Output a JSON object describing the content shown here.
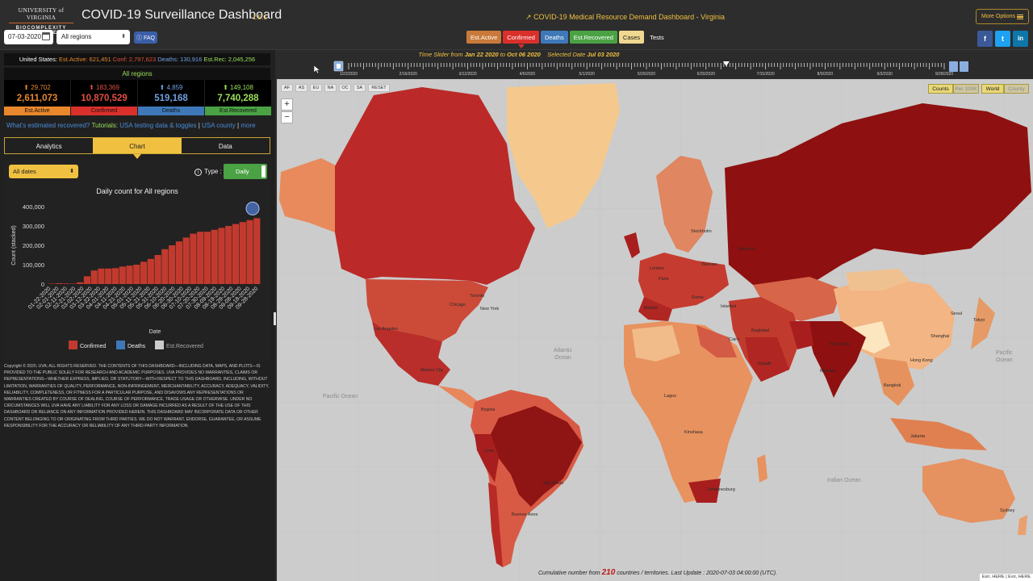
{
  "header": {
    "logo_line1": "UNIVERSITY of VIRGINIA",
    "logo_line2": "BIOCOMPLEXITY INSTITUTE",
    "title": "COVID-19 Surveillance Dashboard",
    "version": "1.5.1",
    "date_value": "07-03-2020",
    "region_value": "All regions",
    "faq": "FAQ",
    "med_link": "COVID-19 Medical Resource Demand Dashboard - Virginia",
    "stat_tabs": [
      "Est.Active",
      "Confirmed",
      "Deaths",
      "Est.Recovered",
      "Cases",
      "Tests"
    ],
    "more_options": "More Options",
    "social": [
      "f",
      "t",
      "in"
    ]
  },
  "summary": {
    "prefix": "United States:",
    "active": "Est.Active: 621,451",
    "conf": "Conf: 2,797,623",
    "deaths": "Deaths: 130,916",
    "rec": "Est.Rec: 2,045,256",
    "scope": "All regions"
  },
  "cards": [
    {
      "delta": "29,702",
      "value": "2,611,073",
      "label": "Est.Active",
      "color": "#e8872c"
    },
    {
      "delta": "183,369",
      "value": "10,870,529",
      "label": "Confirmed",
      "color": "#d9302b"
    },
    {
      "delta": "4,859",
      "value": "519,168",
      "label": "Deaths",
      "color": "#3f78b8"
    },
    {
      "delta": "149,108",
      "value": "7,740,288",
      "label": "Est.Recovered",
      "color": "#4aa244"
    }
  ],
  "tutorial": {
    "q": "What's estimated recovered?",
    "t": "Tutorials:",
    "l1": "USA testing data & toggles",
    "sep": "|",
    "l2": "USA county",
    "sep2": "|",
    "l3": "more"
  },
  "view_tabs": [
    "Analytics",
    "Chart",
    "Data"
  ],
  "chart_controls": {
    "dates": "All dates",
    "type_label": "Type :",
    "type_value": "Daily"
  },
  "chart_data": {
    "type": "bar",
    "title": "Daily count for All regions",
    "xlabel": "Date",
    "ylabel": "Count (stacked)",
    "yticks": [
      "0",
      "100,000",
      "200,000",
      "300,000",
      "400,000"
    ],
    "ylim": [
      0,
      400000
    ],
    "xticks": [
      "01-22-2020",
      "02-01-2020",
      "02-11-2020",
      "02-21-2020",
      "03-02-2020",
      "03-12-2020",
      "03-22-2020",
      "04-01-2020",
      "04-11-2020",
      "04-21-2020",
      "05-01-2020",
      "05-11-2020",
      "05-21-2020",
      "05-31-2020",
      "06-10-2020",
      "06-20-2020",
      "06-30-2020",
      "07-10-2020",
      "07-20-2020",
      "07-30-2020",
      "08-09-2020",
      "08-19-2020",
      "08-29-2020",
      "09-08-2020",
      "09-18-2020",
      "09-28-2020"
    ],
    "weekly_confirmed": [
      2000,
      4000,
      3000,
      2000,
      9000,
      40000,
      70000,
      80000,
      80000,
      82000,
      90000,
      95000,
      100000,
      115000,
      130000,
      150000,
      180000,
      200000,
      220000,
      240000,
      260000,
      270000,
      270000,
      280000,
      290000,
      300000,
      310000,
      320000,
      330000,
      340000
    ],
    "legend": [
      "Confirmed",
      "Deaths",
      "Est.Recovered"
    ],
    "series_colors": [
      "#c23a2e",
      "#3f78b8",
      "#cccccc"
    ]
  },
  "disclaimer": "Copyright © 2020, UVA; ALL RIGHTS RESERVED. THE CONTENTS OF THIS DASHBOARD—INCLUDING DATA, MAPS, AND PLOTS—IS PROVIDED TO THE PUBLIC SOLELY FOR RESEARCH AND ACADEMIC PURPOSES. UVA PROVIDES NO WARRANTIES, CLAIMS OR REPRESENTATIONS—WHETHER EXPRESS, IMPLIED, OR STATUTORY—WITH RESPECT TO THIS DASHBOARD, INCLUDING, WITHOUT LIMITATION, WARRANTIES OF QUALITY, PERFORMANCE, NON-INFRINGEMENT, MERCHANTABILITY, ACCURACY, ADEQUACY, VALIDITY, RELIABILITY, COMPLETENESS, OR FITNESS FOR A PARTICULAR PURPOSE, AND DISAVOWS ANY REPRESENTATIONS OR WARRANTIES CREATED BY COURSE OF DEALING, COURSE OF PERFORMANCE, TRADE USAGE OR OTHERWISE. UNDER NO CIRCUMSTANCES WILL UVA HAVE ANY LIABILITY FOR ANY LOSS OR DAMAGE INCURRED AS A RESULT OF THE USE OF THIS DASHBOARD OR RELIANCE ON ANY INFORMATION PROVIDED HEREIN. THIS DASHBOARD MAY INCORPORATE DATA OR OTHER CONTENT BELONGING TO OR ORIGINATING FROM THIRD PARTIES. WE DO NOT WARRANT, ENDORSE, GUARANTEE, OR ASSUME RESPONSIBILITY FOR THE ACCURACY OR RELIABILITY OF ANY THIRD-PARTY INFORMATION.",
  "time": {
    "prefix": "Time Slider from",
    "start": "Jan 22 2020",
    "to": "to",
    "end": "Oct 06 2020",
    "sel_prefix": "Selected Date",
    "selected": "Jul 03 2020",
    "tick_labels": [
      "1/22/2020",
      "2/16/2020",
      "3/12/2020",
      "4/6/2020",
      "5/1/2020",
      "5/26/2020",
      "6/20/2020",
      "7/15/2020",
      "8/9/2020",
      "9/3/2020",
      "9/28/2020"
    ],
    "position": 0.634
  },
  "map": {
    "region_buttons": [
      "AF",
      "AS",
      "EU",
      "NA",
      "OC",
      "SA",
      "RESET"
    ],
    "counts": "Counts",
    "per100k": "Per 100K",
    "world": "World",
    "county": "County",
    "oceans": [
      "Atlantic\nOcean",
      "Pacific Ocean",
      "Indian Ocean",
      "Pacific\nOcean"
    ],
    "cities": [
      "Moscow",
      "Stockholm",
      "Warsaw",
      "London",
      "Paris",
      "Madrid",
      "Roma",
      "Istanbul",
      "Baghdad",
      "Riyadh",
      "Cairo",
      "Lagos",
      "Kinshasa",
      "Johannesburg",
      "Mumbai",
      "New Delhi",
      "Hong Kong",
      "Shanghai",
      "Tokyo",
      "Seoul",
      "Bangkok",
      "Jakarta",
      "Sydney",
      "Chicago",
      "New York",
      "Los Angeles",
      "Mexico City",
      "Bogota",
      "Lima",
      "Sao Paulo",
      "Buenos Aires",
      "Toronto"
    ],
    "footer_pre": "Cumulative number from",
    "footer_count": "210",
    "footer_post": "countries / territories. Last Update : 2020-07-03 04:00:00 (UTC).",
    "attribution": "Esri, HERE | Esri, HERE"
  }
}
